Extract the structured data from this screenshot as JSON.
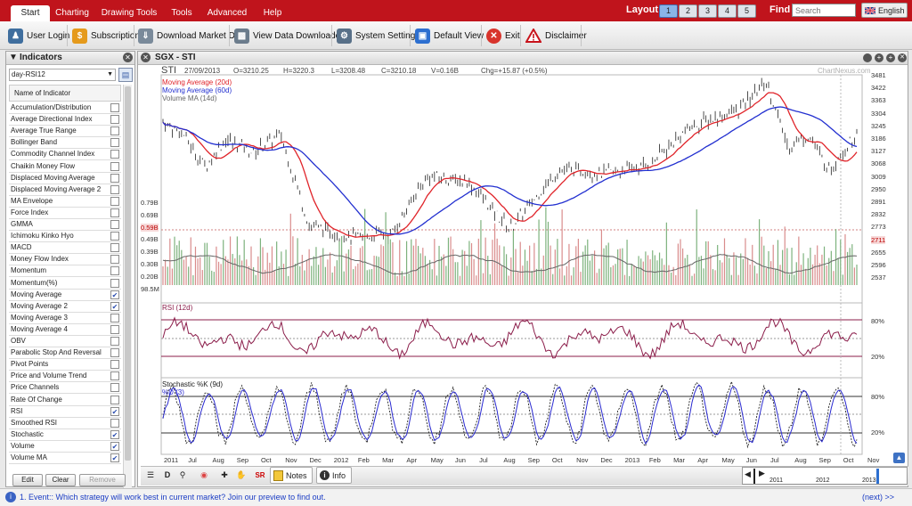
{
  "menu": {
    "tabs": [
      "Start",
      "Charting",
      "Drawing Tools",
      "Tools",
      "Advanced",
      "Help"
    ],
    "layout_label": "Layout:",
    "layout_buttons": [
      "1",
      "2",
      "3",
      "4",
      "5"
    ],
    "find_label": "Find",
    "search_placeholder": "Search",
    "language": "English"
  },
  "toolbar": {
    "items": [
      "User Login",
      "Subscription",
      "Download Market Data",
      "View Data Downloader",
      "System Settings",
      "Default View",
      "Exit",
      "Disclaimer"
    ]
  },
  "sidebar": {
    "title": "Indicators",
    "preset": "day-RSI12",
    "column_header": "Name of Indicator",
    "indicators": [
      {
        "name": "Accumulation/Distribution",
        "checked": false
      },
      {
        "name": "Average Directional Index",
        "checked": false
      },
      {
        "name": "Average True Range",
        "checked": false
      },
      {
        "name": "Bollinger Band",
        "checked": false
      },
      {
        "name": "Commodity Channel Index",
        "checked": false
      },
      {
        "name": "Chaikin Money Flow",
        "checked": false
      },
      {
        "name": "Displaced Moving Average",
        "checked": false
      },
      {
        "name": "Displaced Moving Average 2",
        "checked": false
      },
      {
        "name": "MA Envelope",
        "checked": false
      },
      {
        "name": "Force Index",
        "checked": false
      },
      {
        "name": "GMMA",
        "checked": false
      },
      {
        "name": "Ichimoku Kinko Hyo",
        "checked": false
      },
      {
        "name": "MACD",
        "checked": false
      },
      {
        "name": "Money Flow Index",
        "checked": false
      },
      {
        "name": "Momentum",
        "checked": false
      },
      {
        "name": "Momentum(%)",
        "checked": false
      },
      {
        "name": "Moving Average",
        "checked": true
      },
      {
        "name": "Moving Average 2",
        "checked": true
      },
      {
        "name": "Moving Average 3",
        "checked": false
      },
      {
        "name": "Moving Average 4",
        "checked": false
      },
      {
        "name": "OBV",
        "checked": false
      },
      {
        "name": "Parabolic Stop And Reversal",
        "checked": false
      },
      {
        "name": "Pivot Points",
        "checked": false
      },
      {
        "name": "Price and Volume Trend",
        "checked": false
      },
      {
        "name": "Price Channels",
        "checked": false
      },
      {
        "name": "Rate Of Change",
        "checked": false
      },
      {
        "name": "RSI",
        "checked": true
      },
      {
        "name": "Smoothed RSI",
        "checked": false
      },
      {
        "name": "Stochastic",
        "checked": true
      },
      {
        "name": "Volume",
        "checked": true
      },
      {
        "name": "Volume MA",
        "checked": true
      }
    ],
    "buttons": [
      "Edit",
      "Clear",
      "Remove"
    ]
  },
  "chart": {
    "title": "SGX - STI",
    "symbol": "STI",
    "date": "27/09/2013",
    "open": "O=3210.25",
    "high": "H=3220.3",
    "low": "L=3208.48",
    "close": "C=3210.18",
    "volume": "V=0.16B",
    "change": "Chg=+15.87 (+0.5%)",
    "watermark": "ChartNexus.com",
    "legend": [
      {
        "name": "Moving Average (20d)",
        "color": "#e0242a"
      },
      {
        "name": "Moving Average (60d)",
        "color": "#2330d0"
      },
      {
        "name": "Volume MA (14d)",
        "color": "#666666"
      }
    ],
    "price_ticks": [
      "3481",
      "3422",
      "3363",
      "3304",
      "3245",
      "3186",
      "3127",
      "3068",
      "3009",
      "2950",
      "2891",
      "2832",
      "2773",
      "2711",
      "2655",
      "2596",
      "2537"
    ],
    "price_highlight": "2711",
    "volume_ticks": [
      "0.79B",
      "0.69B",
      "0.59B",
      "0.49B",
      "0.39B",
      "0.30B",
      "0.20B",
      "98.5M"
    ],
    "volume_highlight": "0.59B",
    "rsi_label": "RSI (12d)",
    "rsi_ticks": [
      "80%",
      "20%"
    ],
    "stoch_label_k": "Stochastic %K (9d)",
    "stoch_label_d": "%D (3)",
    "stoch_ticks": [
      "80%",
      "20%"
    ],
    "x_labels": [
      "2011",
      "Jul",
      "Aug",
      "Sep",
      "Oct",
      "Nov",
      "Dec",
      "2012",
      "Feb",
      "Mar",
      "Apr",
      "May",
      "Jun",
      "Jul",
      "Aug",
      "Sep",
      "Oct",
      "Nov",
      "Dec",
      "2013",
      "Feb",
      "Mar",
      "Apr",
      "May",
      "Jun",
      "Jul",
      "Aug",
      "Sep",
      "Oct",
      "Nov"
    ],
    "bottom_tools": [
      "Notes",
      "Info"
    ],
    "navigator_years": [
      "2011",
      "2012",
      "2013"
    ]
  },
  "status": {
    "text": "1. Event:: Which strategy will work best in current market? Join our preview to find out.",
    "next": "(next) >>"
  },
  "colors": {
    "menubar": "#c0141c",
    "ma20": "#e0242a",
    "ma60": "#2330d0",
    "rsi": "#8b1d4a",
    "stoch": "#2a2ad0"
  }
}
